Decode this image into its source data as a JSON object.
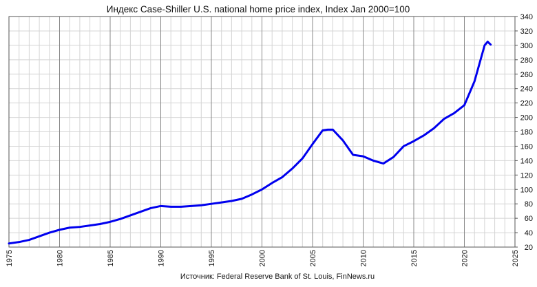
{
  "chart_data": {
    "type": "line",
    "title": "Индекс Case-Shiller U.S. national home price index, Index Jan 2000=100",
    "source": "Источник: Federal Reserve Bank of St. Louis, FinNews.ru",
    "xlabel": "",
    "ylabel": "",
    "xlim": [
      1975,
      2025
    ],
    "ylim": [
      20,
      340
    ],
    "x_ticks": [
      1975,
      1980,
      1985,
      1990,
      1995,
      2000,
      2005,
      2010,
      2015,
      2020,
      2025
    ],
    "x_tick_labels": [
      "1975",
      "1980",
      "1985",
      "1990",
      "1995",
      "2000",
      "2005",
      "2010",
      "2015",
      "2020",
      "2025"
    ],
    "y_ticks": [
      20,
      40,
      60,
      80,
      100,
      120,
      140,
      160,
      180,
      200,
      220,
      240,
      260,
      280,
      300,
      320,
      340
    ],
    "y_tick_labels": [
      "20",
      "40",
      "60",
      "80",
      "100",
      "120",
      "140",
      "160",
      "180",
      "200",
      "220",
      "240",
      "260",
      "280",
      "300",
      "320",
      "340"
    ],
    "y_axis_position": "right",
    "grid": true,
    "grid_minor_x_step": 1,
    "grid_minor_y_step": 20,
    "line_color": "#0000ee",
    "grid_minor_color": "#d4d4d4",
    "grid_major_color": "#888888",
    "series": [
      {
        "name": "Case-Shiller U.S. National Home Price Index",
        "x": [
          1975,
          1976,
          1977,
          1978,
          1979,
          1980,
          1981,
          1982,
          1983,
          1984,
          1985,
          1986,
          1987,
          1988,
          1989,
          1990,
          1991,
          1992,
          1993,
          1994,
          1995,
          1996,
          1997,
          1998,
          1999,
          2000,
          2001,
          2002,
          2003,
          2004,
          2005,
          2006,
          2006.5,
          2007,
          2008,
          2009,
          2010,
          2011,
          2012,
          2013,
          2014,
          2015,
          2016,
          2017,
          2018,
          2019,
          2020,
          2021,
          2022,
          2022.3,
          2022.6
        ],
        "values": [
          25,
          27,
          30,
          35,
          40,
          44,
          47,
          48,
          50,
          52,
          55,
          59,
          64,
          69,
          74,
          77,
          76,
          76,
          77,
          78,
          80,
          82,
          84,
          87,
          93,
          100,
          109,
          117,
          129,
          143,
          163,
          182,
          183,
          183,
          168,
          148,
          146,
          140,
          136,
          145,
          160,
          167,
          175,
          185,
          198,
          206,
          217,
          250,
          300,
          305,
          301
        ]
      }
    ]
  }
}
